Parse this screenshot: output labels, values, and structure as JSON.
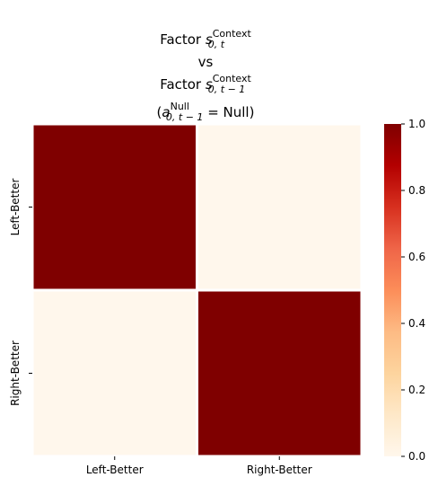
{
  "chart_data": {
    "type": "heatmap",
    "title": {
      "line1_prefix": "Factor ",
      "line1_var": "s",
      "line1_sup": "Context",
      "line1_sub": "0, t",
      "line2": "vs",
      "line3_prefix": "Factor ",
      "line3_var": "s",
      "line3_sup": "Context",
      "line3_sub": "0, t − 1",
      "line4_open": "(",
      "line4_var": "a",
      "line4_sup": "Null",
      "line4_sub": "0, t − 1",
      "line4_rest": " = Null)"
    },
    "x_categories": [
      "Left-Better",
      "Right-Better"
    ],
    "y_categories": [
      "Left-Better",
      "Right-Better"
    ],
    "values": [
      [
        1.0,
        0.0
      ],
      [
        0.0,
        1.0
      ]
    ],
    "colorbar": {
      "ticks": [
        "0.0",
        "0.2",
        "0.4",
        "0.6",
        "0.8",
        "1.0"
      ],
      "range": [
        0,
        1
      ],
      "colormap": "OrRd"
    },
    "colors": {
      "low": "#fff7ec",
      "high": "#7f0000",
      "cell_border": "#ffffff"
    }
  }
}
